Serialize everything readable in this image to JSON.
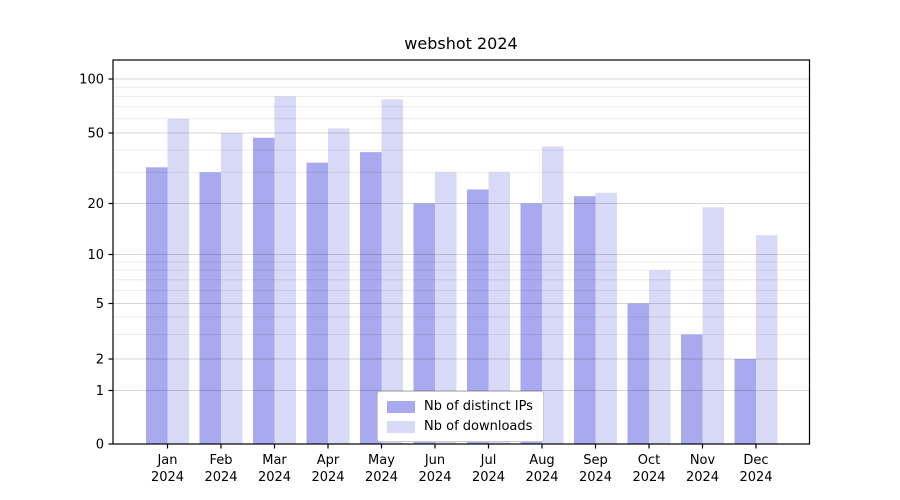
{
  "title": "webshot 2024",
  "chart_data": {
    "type": "bar",
    "title": "webshot 2024",
    "categories": [
      "Jan 2024",
      "Feb 2024",
      "Mar 2024",
      "Apr 2024",
      "May 2024",
      "Jun 2024",
      "Jul 2024",
      "Aug 2024",
      "Sep 2024",
      "Oct 2024",
      "Nov 2024",
      "Dec 2024"
    ],
    "series": [
      {
        "name": "Nb of distinct IPs",
        "color": "#a9a9f0",
        "values": [
          32,
          30,
          47,
          34,
          39,
          20,
          24,
          20,
          22,
          5,
          3,
          2
        ]
      },
      {
        "name": "Nb of downloads",
        "color": "#d9d9f8",
        "values": [
          60,
          50,
          80,
          53,
          77,
          30,
          30,
          42,
          23,
          8,
          19,
          13
        ]
      }
    ],
    "xlabel": "",
    "ylabel": "",
    "y_scale": "log-like",
    "y_ticks": [
      0,
      1,
      2,
      5,
      10,
      20,
      50,
      100
    ],
    "y_minor_gridlines": [
      3,
      4,
      6,
      7,
      8,
      9,
      30,
      40,
      60,
      70,
      80,
      90
    ],
    "ylim": [
      0,
      128
    ],
    "grid": true,
    "legend_position": "lower center",
    "axis_color": "#000000",
    "grid_major_color": "#d6d6d6",
    "grid_minor_color": "#ebebeb",
    "background_color": "#ffffff"
  }
}
